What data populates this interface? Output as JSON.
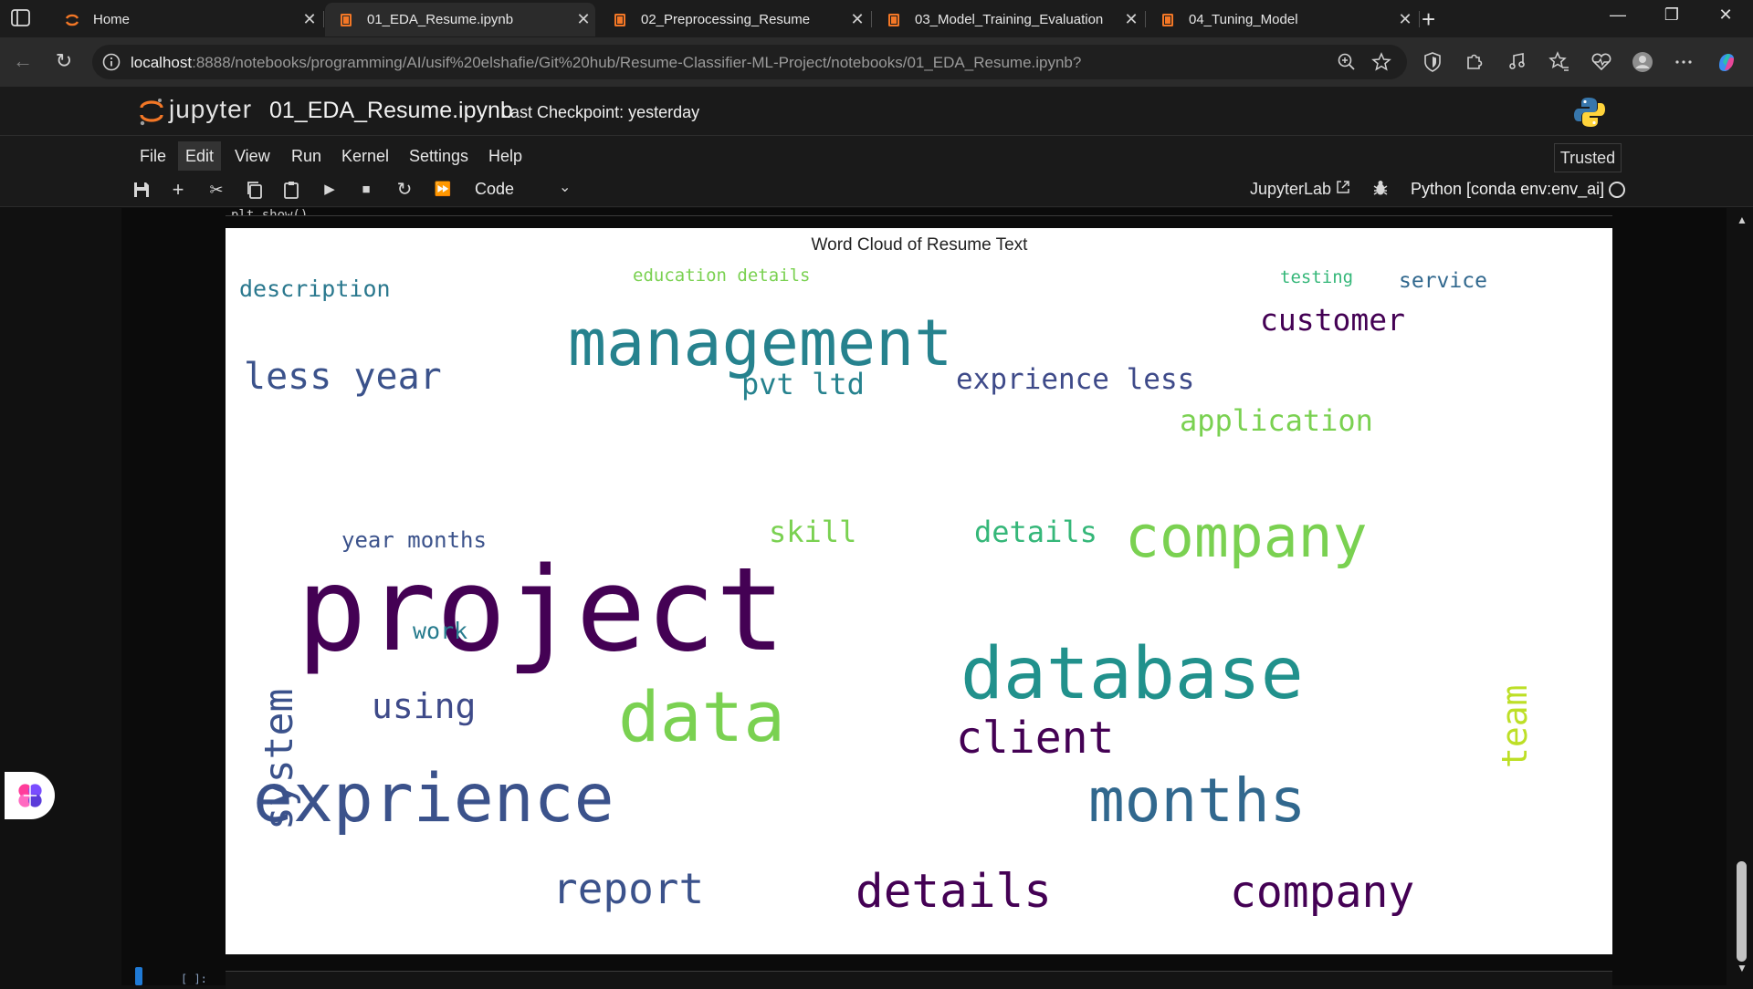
{
  "browser": {
    "tabs": [
      {
        "title": "Home",
        "active": false
      },
      {
        "title": "01_EDA_Resume.ipynb",
        "active": true
      },
      {
        "title": "02_Preprocessing_Resume",
        "active": false
      },
      {
        "title": "03_Model_Training_Evaluation",
        "active": false
      },
      {
        "title": "04_Tuning_Model",
        "active": false
      }
    ],
    "url_host": "localhost",
    "url_rest": ":8888/notebooks/programming/AI/usif%20elshafie/Git%20hub/Resume-Classifier-ML-Project/notebooks/01_EDA_Resume.ipynb?"
  },
  "jupyter": {
    "logo_text": "jupyter",
    "notebook_title": "01_EDA_Resume.ipynb",
    "checkpoint": "Last Checkpoint: yesterday",
    "menu": [
      "File",
      "Edit",
      "View",
      "Run",
      "Kernel",
      "Settings",
      "Help"
    ],
    "trusted": "Trusted",
    "cell_type": "Code",
    "jupyterlab_link": "JupyterLab",
    "kernel": "Python [conda env:env_ai]",
    "cell_prompt": "[ ]:",
    "cut_text": "plt.show()"
  },
  "chart_data": {
    "type": "wordcloud",
    "title": "Word Cloud of Resume Text",
    "words": [
      {
        "text": "project",
        "weight": 1.0,
        "color": "#440154"
      },
      {
        "text": "database",
        "weight": 0.62,
        "color": "#21918c"
      },
      {
        "text": "data",
        "weight": 0.6,
        "color": "#7ad151"
      },
      {
        "text": "exprience",
        "weight": 0.58,
        "color": "#3b528b"
      },
      {
        "text": "management",
        "weight": 0.55,
        "color": "#26828e"
      },
      {
        "text": "months",
        "weight": 0.52,
        "color": "#31688e"
      },
      {
        "text": "company",
        "weight": 0.5,
        "color": "#7ad151"
      },
      {
        "text": "details",
        "weight": 0.4,
        "color": "#440154"
      },
      {
        "text": "company",
        "weight": 0.38,
        "color": "#440154"
      },
      {
        "text": "client",
        "weight": 0.38,
        "color": "#440154"
      },
      {
        "text": "report",
        "weight": 0.36,
        "color": "#3b528b"
      },
      {
        "text": "system",
        "weight": 0.34,
        "color": "#3b528b"
      },
      {
        "text": "application",
        "weight": 0.33,
        "color": "#7ad151"
      },
      {
        "text": "exprience less",
        "weight": 0.32,
        "color": "#3e4a89"
      },
      {
        "text": "less year",
        "weight": 0.32,
        "color": "#3b528b"
      },
      {
        "text": "customer",
        "weight": 0.26,
        "color": "#440154"
      },
      {
        "text": "team",
        "weight": 0.3,
        "color": "#bddf26"
      },
      {
        "text": "using",
        "weight": 0.3,
        "color": "#3e4a89"
      },
      {
        "text": "description",
        "weight": 0.26,
        "color": "#2a788e"
      },
      {
        "text": "pvt ltd",
        "weight": 0.25,
        "color": "#26828e"
      },
      {
        "text": "year months",
        "weight": 0.25,
        "color": "#3b528b"
      },
      {
        "text": "skill",
        "weight": 0.25,
        "color": "#7ad151"
      },
      {
        "text": "details",
        "weight": 0.25,
        "color": "#35b779"
      },
      {
        "text": "education details",
        "weight": 0.2,
        "color": "#7ad151"
      },
      {
        "text": "work",
        "weight": 0.2,
        "color": "#287c8e"
      },
      {
        "text": "service",
        "weight": 0.18,
        "color": "#31688e"
      },
      {
        "text": "testing",
        "weight": 0.15,
        "color": "#35b779"
      }
    ]
  }
}
